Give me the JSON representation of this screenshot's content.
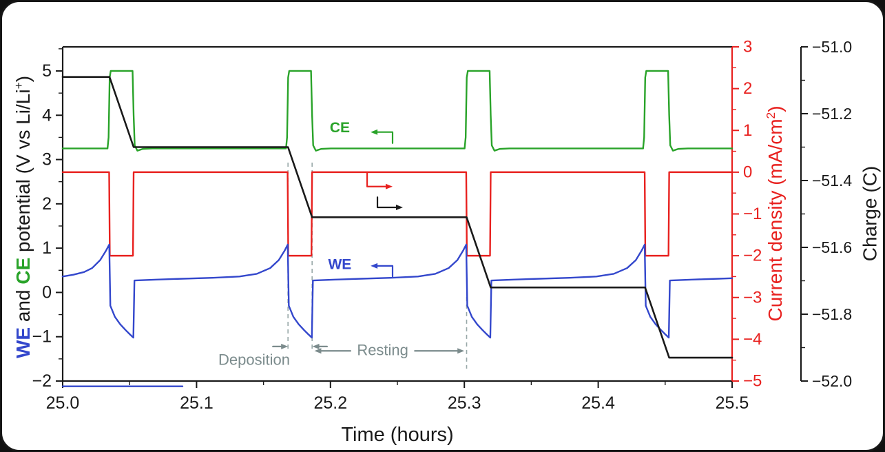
{
  "colors": {
    "we_blue": "#3347cc",
    "ce_green": "#29a329",
    "current_red": "#e8211f",
    "charge_black": "#1a1a1a",
    "annotation_gray": "#7b8b8c",
    "dashed_gray": "#98a8a8"
  },
  "chart_data": {
    "type": "line",
    "title": "",
    "x_axis": {
      "label": "Time (hours)",
      "range": [
        25.0,
        25.5
      ],
      "minor_step": 0.05,
      "major_ticks": [
        {
          "v": 25.0,
          "label": "25.0"
        },
        {
          "v": 25.1,
          "label": "25.1"
        },
        {
          "v": 25.2,
          "label": "25.2"
        },
        {
          "v": 25.3,
          "label": "25.3"
        },
        {
          "v": 25.4,
          "label": "25.4"
        },
        {
          "v": 25.5,
          "label": "25.5"
        }
      ]
    },
    "left_axis": {
      "range": [
        -2,
        5.544
      ],
      "minor_step": 0.5,
      "color": "#1a1a1a",
      "label_parts": [
        {
          "text": "WE",
          "color": "#3347cc",
          "bold": true
        },
        {
          "text": " and ",
          "color": "#1a1a1a"
        },
        {
          "text": "CE",
          "color": "#29a329",
          "bold": true
        },
        {
          "text": " potential (V vs Li/Li",
          "color": "#1a1a1a"
        },
        {
          "text": "+",
          "color": "#1a1a1a",
          "sup": true
        },
        {
          "text": ")",
          "color": "#1a1a1a"
        }
      ],
      "major_ticks": [
        {
          "v": 5,
          "label": "5"
        },
        {
          "v": 4,
          "label": "4"
        },
        {
          "v": 3,
          "label": "3"
        },
        {
          "v": 2,
          "label": "2"
        },
        {
          "v": 1,
          "label": "1"
        },
        {
          "v": 0,
          "label": "0"
        },
        {
          "v": -1,
          "label": "−1"
        },
        {
          "v": -2,
          "label": "−2"
        }
      ]
    },
    "current_axis": {
      "range": [
        -5,
        3
      ],
      "minor_step": 0.5,
      "color": "#e8211f",
      "label_parts": [
        {
          "text": "Current density (mA/cm",
          "color": "#e8211f"
        },
        {
          "text": "2",
          "color": "#e8211f",
          "sup": true
        },
        {
          "text": ")",
          "color": "#e8211f"
        }
      ],
      "major_ticks": [
        {
          "v": 3,
          "label": "3"
        },
        {
          "v": 2,
          "label": "2"
        },
        {
          "v": 1,
          "label": "1"
        },
        {
          "v": 0,
          "label": "0"
        },
        {
          "v": -1,
          "label": "−1"
        },
        {
          "v": -2,
          "label": "−2"
        },
        {
          "v": -3,
          "label": "−3"
        },
        {
          "v": -4,
          "label": "−4"
        },
        {
          "v": -5,
          "label": "−5"
        }
      ]
    },
    "charge_axis": {
      "label": "Charge (C)",
      "range": [
        -52.0,
        -51.0
      ],
      "minor_step": 0.1,
      "color": "#1a1a1a",
      "major_ticks": [
        {
          "v": -51.0,
          "label": "−51.0"
        },
        {
          "v": -51.2,
          "label": "−51.2"
        },
        {
          "v": -51.4,
          "label": "−51.4"
        },
        {
          "v": -51.6,
          "label": "−51.6"
        },
        {
          "v": -51.8,
          "label": "−51.8"
        },
        {
          "v": -52.0,
          "label": "−52.0"
        }
      ]
    },
    "series": [
      {
        "name": "Current density",
        "color": "#e8211f",
        "axis": "current",
        "width": 2.4,
        "points": [
          [
            25.0,
            0
          ],
          [
            25.0347,
            0
          ],
          [
            25.0352,
            -2
          ],
          [
            25.0525,
            -2
          ],
          [
            25.053,
            0
          ],
          [
            25.168,
            0
          ],
          [
            25.1685,
            -2
          ],
          [
            25.1858,
            -2
          ],
          [
            25.1863,
            0
          ],
          [
            25.3014,
            0
          ],
          [
            25.3019,
            -2
          ],
          [
            25.3192,
            -2
          ],
          [
            25.3197,
            0
          ],
          [
            25.4347,
            0
          ],
          [
            25.4352,
            -2
          ],
          [
            25.4525,
            -2
          ],
          [
            25.453,
            0
          ],
          [
            25.5,
            0
          ]
        ]
      },
      {
        "name": "CE",
        "color": "#29a329",
        "axis": "left",
        "width": 2.4,
        "points": [
          [
            25.0,
            3.25
          ],
          [
            25.0335,
            3.25
          ],
          [
            25.0343,
            3.5
          ],
          [
            25.0351,
            4.85
          ],
          [
            25.0359,
            5.0
          ],
          [
            25.0522,
            5.0
          ],
          [
            25.053,
            4.0
          ],
          [
            25.0538,
            3.32
          ],
          [
            25.0558,
            3.2
          ],
          [
            25.0598,
            3.24
          ],
          [
            25.067,
            3.25
          ],
          [
            25.1668,
            3.25
          ],
          [
            25.1676,
            3.5
          ],
          [
            25.1684,
            4.85
          ],
          [
            25.1692,
            5.0
          ],
          [
            25.1855,
            5.0
          ],
          [
            25.1863,
            4.0
          ],
          [
            25.1871,
            3.32
          ],
          [
            25.1891,
            3.2
          ],
          [
            25.1931,
            3.24
          ],
          [
            25.2003,
            3.25
          ],
          [
            25.3002,
            3.25
          ],
          [
            25.301,
            3.5
          ],
          [
            25.3018,
            4.85
          ],
          [
            25.3026,
            5.0
          ],
          [
            25.3189,
            5.0
          ],
          [
            25.3197,
            4.0
          ],
          [
            25.3205,
            3.32
          ],
          [
            25.3225,
            3.2
          ],
          [
            25.3265,
            3.24
          ],
          [
            25.3337,
            3.25
          ],
          [
            25.4335,
            3.25
          ],
          [
            25.4343,
            3.5
          ],
          [
            25.4351,
            4.85
          ],
          [
            25.4359,
            5.0
          ],
          [
            25.4522,
            5.0
          ],
          [
            25.453,
            4.0
          ],
          [
            25.4538,
            3.32
          ],
          [
            25.4558,
            3.2
          ],
          [
            25.4598,
            3.24
          ],
          [
            25.467,
            3.25
          ],
          [
            25.5,
            3.25
          ]
        ]
      },
      {
        "name": "WE",
        "color": "#3347cc",
        "axis": "left",
        "width": 2.4,
        "points": [
          [
            25.0,
            0.36
          ],
          [
            25.008,
            0.4
          ],
          [
            25.016,
            0.46
          ],
          [
            25.022,
            0.55
          ],
          [
            25.028,
            0.73
          ],
          [
            25.0325,
            0.95
          ],
          [
            25.0348,
            1.08
          ],
          [
            25.0356,
            -0.3
          ],
          [
            25.039,
            -0.55
          ],
          [
            25.043,
            -0.72
          ],
          [
            25.047,
            -0.85
          ],
          [
            25.05,
            -0.94
          ],
          [
            25.0528,
            -1.02
          ],
          [
            25.0536,
            0.27
          ],
          [
            25.07,
            0.29
          ],
          [
            25.09,
            0.31
          ],
          [
            25.112,
            0.33
          ],
          [
            25.132,
            0.36
          ],
          [
            25.145,
            0.42
          ],
          [
            25.155,
            0.55
          ],
          [
            25.1614,
            0.73
          ],
          [
            25.1659,
            0.95
          ],
          [
            25.1681,
            1.08
          ],
          [
            25.1689,
            -0.3
          ],
          [
            25.1723,
            -0.55
          ],
          [
            25.1763,
            -0.72
          ],
          [
            25.1803,
            -0.85
          ],
          [
            25.1833,
            -0.94
          ],
          [
            25.1861,
            -1.02
          ],
          [
            25.1869,
            0.27
          ],
          [
            25.2033,
            0.29
          ],
          [
            25.2233,
            0.31
          ],
          [
            25.2453,
            0.33
          ],
          [
            25.2653,
            0.36
          ],
          [
            25.2783,
            0.42
          ],
          [
            25.2883,
            0.55
          ],
          [
            25.2948,
            0.73
          ],
          [
            25.2992,
            0.95
          ],
          [
            25.3014,
            1.08
          ],
          [
            25.3022,
            -0.3
          ],
          [
            25.3056,
            -0.55
          ],
          [
            25.3096,
            -0.72
          ],
          [
            25.3136,
            -0.85
          ],
          [
            25.3166,
            -0.94
          ],
          [
            25.3194,
            -1.02
          ],
          [
            25.3202,
            0.27
          ],
          [
            25.3366,
            0.29
          ],
          [
            25.3566,
            0.31
          ],
          [
            25.3786,
            0.33
          ],
          [
            25.3986,
            0.36
          ],
          [
            25.4116,
            0.42
          ],
          [
            25.4216,
            0.55
          ],
          [
            25.4281,
            0.73
          ],
          [
            25.4325,
            0.95
          ],
          [
            25.4347,
            1.08
          ],
          [
            25.4355,
            -0.3
          ],
          [
            25.4389,
            -0.55
          ],
          [
            25.4429,
            -0.72
          ],
          [
            25.4469,
            -0.85
          ],
          [
            25.4499,
            -0.94
          ],
          [
            25.4527,
            -1.02
          ],
          [
            25.4535,
            0.27
          ],
          [
            25.47,
            0.29
          ],
          [
            25.49,
            0.31
          ],
          [
            25.5,
            0.32
          ]
        ]
      },
      {
        "name": "WE-offscale",
        "color": "#3347cc",
        "axis": "left",
        "width": 2.4,
        "points": [
          [
            25.0,
            -2.12
          ],
          [
            25.0895,
            -2.12
          ]
        ]
      },
      {
        "name": "Charge",
        "color": "#1a1a1a",
        "axis": "charge",
        "width": 2.6,
        "points": [
          [
            25.0,
            -51.09
          ],
          [
            25.035,
            -51.09
          ],
          [
            25.053,
            -51.3
          ],
          [
            25.1683,
            -51.3
          ],
          [
            25.1863,
            -51.51
          ],
          [
            25.3017,
            -51.51
          ],
          [
            25.3197,
            -51.72
          ],
          [
            25.435,
            -51.72
          ],
          [
            25.453,
            -51.93
          ],
          [
            25.5,
            -51.93
          ]
        ]
      }
    ],
    "annotations": {
      "curve_labels": [
        {
          "text": "CE",
          "color": "#29a329",
          "t": 25.207,
          "v": 3.72
        },
        {
          "text": "WE",
          "color": "#3347cc",
          "t": 25.207,
          "v": 0.63
        }
      ],
      "region_labels": [
        {
          "text": "Deposition",
          "color": "#7b8b8c",
          "t": 25.143,
          "v": -1.52
        },
        {
          "text": "Resting",
          "color": "#7b8b8c",
          "t": 25.239,
          "v": -1.3
        }
      ],
      "arrows": [
        {
          "name": "ce-axis-arrow",
          "color": "#29a329",
          "points": [
            [
              25.2464,
              3.37
            ],
            [
              25.2464,
              3.62
            ],
            [
              25.23,
              3.62
            ]
          ]
        },
        {
          "name": "we-axis-arrow",
          "color": "#3347cc",
          "points": [
            [
              25.2464,
              0.36
            ],
            [
              25.2464,
              0.6
            ],
            [
              25.23,
              0.6
            ]
          ]
        },
        {
          "name": "current-axis-arrow",
          "color": "#e8211f",
          "points": [
            [
              25.2274,
              2.71
            ],
            [
              25.2274,
              2.39
            ],
            [
              25.2464,
              2.39
            ]
          ]
        },
        {
          "name": "charge-axis-arrow",
          "color": "#1a1a1a",
          "points": [
            [
              25.2351,
              2.15
            ],
            [
              25.2351,
              1.92
            ],
            [
              25.2541,
              1.92
            ]
          ]
        },
        {
          "name": "deposition-left-arrow",
          "color": "#7b8b8c",
          "points": [
            [
              25.157,
              -1.22
            ],
            [
              25.1683,
              -1.22
            ]
          ]
        },
        {
          "name": "deposition-right-arrow",
          "color": "#7b8b8c",
          "points": [
            [
              25.1975,
              -1.22
            ],
            [
              25.1865,
              -1.22
            ]
          ]
        },
        {
          "name": "resting-left-arrow",
          "color": "#7b8b8c",
          "points": [
            [
              25.215,
              -1.32
            ],
            [
              25.188,
              -1.32
            ]
          ]
        },
        {
          "name": "resting-right-arrow",
          "color": "#7b8b8c",
          "points": [
            [
              25.263,
              -1.32
            ],
            [
              25.3,
              -1.32
            ]
          ]
        }
      ],
      "dashed_lines": [
        {
          "t": 25.1683,
          "v1": 2.93,
          "v2": -1.3
        },
        {
          "t": 25.1863,
          "v1": 2.93,
          "v2": -1.3
        },
        {
          "t": 25.3017,
          "v1": -0.1,
          "v2": -1.72
        }
      ]
    }
  }
}
